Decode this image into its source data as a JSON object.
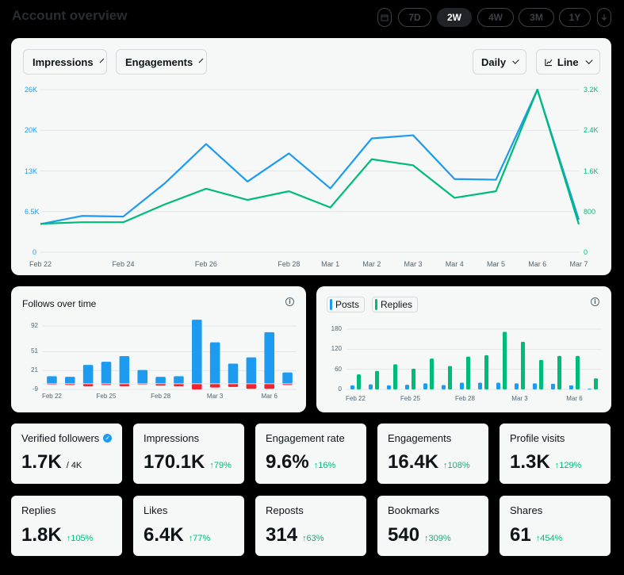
{
  "header": {
    "title": "Account overview",
    "ranges": [
      "7D",
      "2W",
      "4W",
      "3M",
      "1Y"
    ],
    "active_range": "2W",
    "calendar_icon": "calendar-icon",
    "download_icon": "download-icon"
  },
  "main_chart": {
    "metric_a": "Impressions",
    "metric_b": "Engagements",
    "interval": "Daily",
    "chart_type": "Line",
    "colors": {
      "impressions": "#1d9bf0",
      "engagements": "#00ba7c"
    }
  },
  "follows_panel": {
    "title": "Follows over time"
  },
  "posts_panel": {
    "legend_posts": "Posts",
    "legend_replies": "Replies"
  },
  "stats": [
    {
      "label": "Verified followers",
      "value": "1.7K",
      "sub": "/ 4K",
      "change": "",
      "verified": true
    },
    {
      "label": "Impressions",
      "value": "170.1K",
      "change": "79%"
    },
    {
      "label": "Engagement rate",
      "value": "9.6%",
      "change": "16%"
    },
    {
      "label": "Engagements",
      "value": "16.4K",
      "change": "108%"
    },
    {
      "label": "Profile visits",
      "value": "1.3K",
      "change": "129%"
    },
    {
      "label": "Replies",
      "value": "1.8K",
      "change": "105%"
    },
    {
      "label": "Likes",
      "value": "6.4K",
      "change": "77%"
    },
    {
      "label": "Reposts",
      "value": "314",
      "change": "63%"
    },
    {
      "label": "Bookmarks",
      "value": "540",
      "change": "309%"
    },
    {
      "label": "Shares",
      "value": "61",
      "change": "454%"
    }
  ],
  "chart_data": [
    {
      "type": "line",
      "title": "",
      "x": [
        "Feb 22",
        "Feb 23",
        "Feb 24",
        "Feb 25",
        "Feb 26",
        "Feb 27",
        "Feb 28",
        "Mar 1",
        "Mar 2",
        "Mar 3",
        "Mar 4",
        "Mar 5",
        "Mar 6",
        "Mar 7"
      ],
      "x_tick_labels": [
        "Feb 22",
        "Feb 24",
        "Feb 26",
        "Feb 28",
        "Mar 1",
        "Mar 2",
        "Mar 3",
        "Mar 4",
        "Mar 5",
        "Mar 6",
        "Mar 7"
      ],
      "y_left_ticks": [
        "26K",
        "20K",
        "13K",
        "6.5K",
        "0"
      ],
      "y_right_ticks": [
        "3.2K",
        "2.4K",
        "1.6K",
        "800",
        "0"
      ],
      "y_left_range": [
        0,
        26000
      ],
      "y_right_range": [
        0,
        3200
      ],
      "series": [
        {
          "name": "Impressions",
          "axis": "left",
          "values": [
            4500,
            5800,
            5700,
            11000,
            17300,
            11300,
            15800,
            10200,
            18200,
            18700,
            11700,
            11600,
            26000,
            5200
          ]
        },
        {
          "name": "Engagements",
          "axis": "right",
          "values": [
            560,
            590,
            590,
            940,
            1250,
            1030,
            1200,
            880,
            1830,
            1710,
            1070,
            1200,
            3200,
            550
          ]
        }
      ]
    },
    {
      "type": "bar",
      "title": "Follows over time",
      "x_tick_labels": [
        "Feb 22",
        "Feb 25",
        "Feb 28",
        "Mar 3",
        "Mar 6"
      ],
      "tick_positions": [
        0,
        3,
        6,
        9,
        12
      ],
      "y_ticks": [
        "92",
        "51",
        "21",
        "-9"
      ],
      "y_tick_values": [
        92,
        51,
        21,
        -9
      ],
      "series": [
        {
          "name": "Follows",
          "color": "#1d9bf0",
          "values": [
            12,
            11,
            30,
            35,
            44,
            22,
            11,
            12,
            102,
            66,
            32,
            42,
            82,
            18
          ]
        },
        {
          "name": "Unfollows",
          "color": "#f4212e",
          "values": [
            -1,
            -2,
            -4,
            -2,
            -4,
            -1,
            -3,
            -4,
            -9,
            -6,
            -5,
            -8,
            -8,
            -2
          ]
        }
      ]
    },
    {
      "type": "bar",
      "title": "",
      "x_tick_labels": [
        "Feb 22",
        "Feb 25",
        "Feb 28",
        "Mar 3",
        "Mar 6"
      ],
      "tick_positions": [
        0,
        3,
        6,
        9,
        12
      ],
      "y_ticks": [
        "180",
        "120",
        "60",
        "0"
      ],
      "y_tick_values": [
        180,
        120,
        60,
        0
      ],
      "series": [
        {
          "name": "Posts",
          "color": "#1d9bf0",
          "values": [
            12,
            15,
            12,
            14,
            18,
            13,
            20,
            20,
            20,
            18,
            18,
            17,
            12,
            2
          ]
        },
        {
          "name": "Replies",
          "color": "#00ba7c",
          "values": [
            45,
            55,
            75,
            62,
            92,
            70,
            98,
            102,
            172,
            142,
            88,
            100,
            100,
            33
          ]
        }
      ]
    }
  ]
}
